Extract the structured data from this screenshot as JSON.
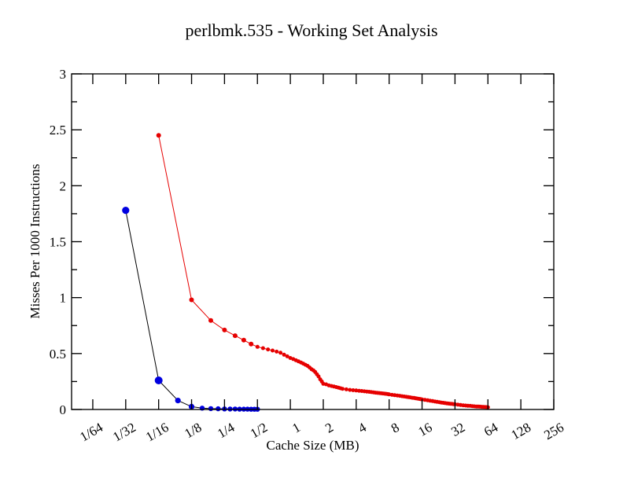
{
  "chart_data": {
    "type": "line",
    "title": "perlbmk.535 - Working Set Analysis",
    "xlabel": "Cache Size (MB)",
    "ylabel": "Misses Per 1000 Instructions",
    "x_scale": "log2",
    "xlim": [
      0.01,
      256
    ],
    "ylim": [
      0,
      3
    ],
    "grid": false,
    "legend": "none",
    "x_ticks": [
      {
        "value": 0.015625,
        "label": "1/64"
      },
      {
        "value": 0.03125,
        "label": "1/32"
      },
      {
        "value": 0.0625,
        "label": "1/16"
      },
      {
        "value": 0.125,
        "label": "1/8"
      },
      {
        "value": 0.25,
        "label": "1/4"
      },
      {
        "value": 0.5,
        "label": "1/2"
      },
      {
        "value": 1,
        "label": "1"
      },
      {
        "value": 2,
        "label": "2"
      },
      {
        "value": 4,
        "label": "4"
      },
      {
        "value": 8,
        "label": "8"
      },
      {
        "value": 16,
        "label": "16"
      },
      {
        "value": 32,
        "label": "32"
      },
      {
        "value": 64,
        "label": "64"
      },
      {
        "value": 128,
        "label": "128"
      },
      {
        "value": 256,
        "label": "256"
      }
    ],
    "y_ticks_major": [
      {
        "value": 0,
        "label": "0"
      },
      {
        "value": 0.5,
        "label": "0.5"
      },
      {
        "value": 1,
        "label": "1"
      },
      {
        "value": 1.5,
        "label": "1.5"
      },
      {
        "value": 2,
        "label": "2"
      },
      {
        "value": 2.5,
        "label": "2.5"
      },
      {
        "value": 3,
        "label": "3"
      }
    ],
    "y_ticks_minor": [
      0.25,
      0.75,
      1.25,
      1.75,
      2.25,
      2.75
    ],
    "series": [
      {
        "id": "blue-series",
        "line_color": "#000000",
        "line_width": 1,
        "marker_color": "#0000e0",
        "marker_radius": 3.2,
        "points": [
          [
            0.03125,
            1.78,
            4.6
          ],
          [
            0.0625,
            0.26,
            5.0
          ],
          [
            0.09375,
            0.08,
            3.6
          ],
          [
            0.125,
            0.025,
            3.6
          ],
          [
            0.15625,
            0.012
          ],
          [
            0.1875,
            0.008
          ],
          [
            0.21875,
            0.006
          ],
          [
            0.25,
            0.005
          ],
          [
            0.28125,
            0.004
          ],
          [
            0.3125,
            0.004
          ],
          [
            0.34375,
            0.003
          ],
          [
            0.375,
            0.003
          ],
          [
            0.40625,
            0.003
          ],
          [
            0.4375,
            0.002
          ],
          [
            0.46875,
            0.002
          ],
          [
            0.5,
            0.002
          ]
        ]
      },
      {
        "id": "red-series",
        "line_color": "#e60000",
        "line_width": 1,
        "marker_color": "#e60000",
        "marker_radius": 2.5,
        "points": [
          [
            0.0625,
            2.45,
            3.0
          ],
          [
            0.125,
            0.98,
            3.0
          ],
          [
            0.1875,
            0.795,
            3.0
          ],
          [
            0.25,
            0.71,
            3.0
          ],
          [
            0.3125,
            0.66,
            3.0
          ],
          [
            0.375,
            0.62,
            3.0
          ],
          [
            0.4375,
            0.585,
            3.0
          ],
          [
            0.5,
            0.56
          ],
          [
            0.5625,
            0.548
          ],
          [
            0.625,
            0.537
          ],
          [
            0.6875,
            0.527
          ],
          [
            0.75,
            0.517
          ],
          [
            0.8125,
            0.507
          ],
          [
            0.875,
            0.49
          ],
          [
            0.9375,
            0.475
          ],
          [
            1.0,
            0.46
          ],
          [
            1.0625,
            0.45
          ],
          [
            1.125,
            0.44
          ],
          [
            1.1875,
            0.43
          ],
          [
            1.25,
            0.42
          ],
          [
            1.3125,
            0.41
          ],
          [
            1.375,
            0.4
          ],
          [
            1.4375,
            0.39
          ],
          [
            1.5,
            0.375
          ],
          [
            1.5625,
            0.36
          ],
          [
            1.625,
            0.35
          ],
          [
            1.6875,
            0.335
          ],
          [
            1.75,
            0.315
          ],
          [
            1.8125,
            0.295
          ],
          [
            1.875,
            0.27
          ],
          [
            1.9375,
            0.25
          ],
          [
            2.0,
            0.23
          ],
          [
            2.125,
            0.225
          ],
          [
            2.25,
            0.215
          ],
          [
            2.375,
            0.21
          ],
          [
            2.5,
            0.205
          ],
          [
            2.625,
            0.2
          ],
          [
            2.75,
            0.195
          ],
          [
            2.875,
            0.19
          ],
          [
            3.0,
            0.185
          ],
          [
            3.25,
            0.18
          ],
          [
            3.5,
            0.175
          ],
          [
            3.75,
            0.172
          ],
          [
            4.0,
            0.17
          ],
          [
            4.25,
            0.167
          ],
          [
            4.5,
            0.165
          ],
          [
            4.75,
            0.162
          ],
          [
            5.0,
            0.16
          ],
          [
            5.25,
            0.158
          ],
          [
            5.5,
            0.155
          ],
          [
            5.75,
            0.153
          ],
          [
            6.0,
            0.15
          ],
          [
            6.25,
            0.148
          ],
          [
            6.5,
            0.147
          ],
          [
            6.75,
            0.145
          ],
          [
            7.0,
            0.143
          ],
          [
            7.25,
            0.141
          ],
          [
            7.5,
            0.14
          ],
          [
            7.75,
            0.138
          ],
          [
            8.0,
            0.135
          ],
          [
            8.5,
            0.131
          ],
          [
            9.0,
            0.128
          ],
          [
            9.5,
            0.125
          ],
          [
            10.0,
            0.122
          ],
          [
            10.5,
            0.119
          ],
          [
            11.0,
            0.116
          ],
          [
            11.5,
            0.113
          ],
          [
            12.0,
            0.11
          ],
          [
            12.5,
            0.108
          ],
          [
            13.0,
            0.105
          ],
          [
            13.5,
            0.103
          ],
          [
            14.0,
            0.1
          ],
          [
            14.5,
            0.098
          ],
          [
            15.0,
            0.095
          ],
          [
            15.5,
            0.093
          ],
          [
            16.0,
            0.09
          ],
          [
            17.0,
            0.086
          ],
          [
            18.0,
            0.082
          ],
          [
            19.0,
            0.078
          ],
          [
            20.0,
            0.075
          ],
          [
            21.0,
            0.071
          ],
          [
            22.0,
            0.068
          ],
          [
            23.0,
            0.065
          ],
          [
            24.0,
            0.062
          ],
          [
            25.0,
            0.06
          ],
          [
            26.0,
            0.057
          ],
          [
            27.0,
            0.055
          ],
          [
            28.0,
            0.053
          ],
          [
            29.0,
            0.051
          ],
          [
            30.0,
            0.05
          ],
          [
            31.0,
            0.048
          ],
          [
            32.0,
            0.047
          ],
          [
            34.0,
            0.043
          ],
          [
            36.0,
            0.04
          ],
          [
            38.0,
            0.037
          ],
          [
            40.0,
            0.035
          ],
          [
            42.0,
            0.033
          ],
          [
            44.0,
            0.032
          ],
          [
            46.0,
            0.03
          ],
          [
            48.0,
            0.028
          ],
          [
            50.0,
            0.027
          ],
          [
            52.0,
            0.026
          ],
          [
            54.0,
            0.025
          ],
          [
            56.0,
            0.024
          ],
          [
            58.0,
            0.023
          ],
          [
            60.0,
            0.022
          ],
          [
            62.0,
            0.021
          ],
          [
            64.0,
            0.02
          ]
        ]
      }
    ],
    "frame_color": "#000000"
  }
}
